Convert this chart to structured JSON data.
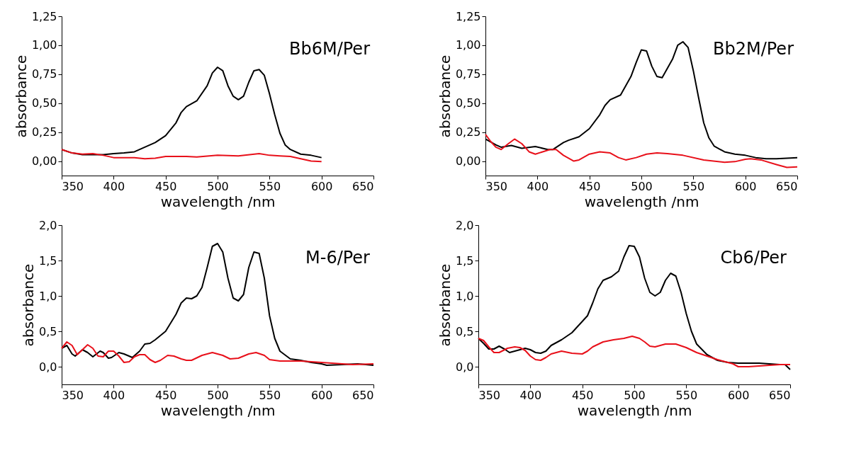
{
  "chart_data": [
    {
      "type": "line",
      "annotations": [
        "Bb6M/Per"
      ],
      "xlabel": "wavelength /nm",
      "ylabel": "absorbance",
      "xlim": [
        350,
        650
      ],
      "xticks": [
        350,
        400,
        450,
        500,
        550,
        600,
        650
      ],
      "ylim": [
        -0.125,
        1.25
      ],
      "yticks": [
        {
          "value": 0,
          "label": "0,00"
        },
        {
          "value": 0.25,
          "label": "0,25"
        },
        {
          "value": 0.5,
          "label": "0,50"
        },
        {
          "value": 0.75,
          "label": "0,75"
        },
        {
          "value": 1.0,
          "label": "1,00"
        },
        {
          "value": 1.25,
          "label": "1,25"
        }
      ],
      "grid": false,
      "legend": false,
      "series": [
        {
          "color": "#000000",
          "x": [
            350,
            360,
            370,
            390,
            400,
            410,
            420,
            430,
            440,
            450,
            460,
            465,
            470,
            480,
            490,
            495,
            500,
            505,
            510,
            515,
            520,
            525,
            530,
            535,
            540,
            545,
            550,
            555,
            560,
            565,
            570,
            580,
            590,
            600
          ],
          "values": [
            0.1,
            0.07,
            0.055,
            0.055,
            0.065,
            0.07,
            0.08,
            0.12,
            0.16,
            0.22,
            0.33,
            0.42,
            0.47,
            0.52,
            0.65,
            0.76,
            0.81,
            0.78,
            0.65,
            0.56,
            0.53,
            0.56,
            0.68,
            0.78,
            0.79,
            0.74,
            0.58,
            0.4,
            0.24,
            0.14,
            0.1,
            0.06,
            0.05,
            0.03
          ]
        },
        {
          "color": "#e8101a",
          "x": [
            350,
            360,
            370,
            380,
            390,
            400,
            420,
            430,
            440,
            450,
            470,
            480,
            500,
            520,
            540,
            550,
            560,
            570,
            580,
            590,
            600
          ],
          "values": [
            0.1,
            0.07,
            0.06,
            0.065,
            0.05,
            0.03,
            0.03,
            0.02,
            0.025,
            0.04,
            0.04,
            0.035,
            0.05,
            0.045,
            0.065,
            0.05,
            0.045,
            0.04,
            0.02,
            0.0,
            -0.005
          ]
        }
      ]
    },
    {
      "type": "line",
      "annotations": [
        "Bb2M/Per"
      ],
      "xlabel": "wavelength /nm",
      "ylabel": "absorbance",
      "xlim": [
        350,
        650
      ],
      "xticks": [
        350,
        400,
        450,
        500,
        550,
        600,
        650
      ],
      "ylim": [
        -0.125,
        1.25
      ],
      "yticks": [
        {
          "value": 0,
          "label": "0,00"
        },
        {
          "value": 0.25,
          "label": "0,25"
        },
        {
          "value": 0.5,
          "label": "0,50"
        },
        {
          "value": 0.75,
          "label": "0,75"
        },
        {
          "value": 1.0,
          "label": "1,00"
        },
        {
          "value": 1.25,
          "label": "1,25"
        }
      ],
      "grid": false,
      "legend": false,
      "series": [
        {
          "color": "#000000",
          "x": [
            350,
            360,
            365,
            375,
            385,
            398,
            410,
            415,
            425,
            430,
            440,
            450,
            460,
            465,
            470,
            480,
            490,
            495,
            500,
            505,
            510,
            515,
            520,
            530,
            535,
            540,
            545,
            550,
            555,
            560,
            565,
            570,
            580,
            590,
            600,
            610,
            620,
            630,
            640,
            650
          ],
          "values": [
            0.19,
            0.14,
            0.12,
            0.135,
            0.11,
            0.125,
            0.1,
            0.1,
            0.16,
            0.18,
            0.21,
            0.28,
            0.4,
            0.48,
            0.53,
            0.57,
            0.73,
            0.85,
            0.96,
            0.95,
            0.82,
            0.73,
            0.72,
            0.88,
            1.0,
            1.03,
            0.98,
            0.78,
            0.55,
            0.33,
            0.2,
            0.13,
            0.08,
            0.06,
            0.05,
            0.03,
            0.02,
            0.02,
            0.025,
            0.03
          ]
        },
        {
          "color": "#e8101a",
          "x": [
            350,
            355,
            360,
            365,
            372,
            378,
            385,
            392,
            398,
            405,
            412,
            418,
            425,
            435,
            440,
            450,
            460,
            470,
            478,
            485,
            495,
            505,
            515,
            525,
            540,
            560,
            580,
            590,
            600,
            605,
            615,
            630,
            640,
            650
          ],
          "values": [
            0.23,
            0.17,
            0.12,
            0.1,
            0.15,
            0.19,
            0.15,
            0.08,
            0.06,
            0.08,
            0.1,
            0.1,
            0.05,
            0.0,
            0.01,
            0.06,
            0.08,
            0.07,
            0.03,
            0.01,
            0.03,
            0.06,
            0.07,
            0.065,
            0.05,
            0.01,
            -0.01,
            -0.005,
            0.015,
            0.02,
            0.01,
            -0.03,
            -0.055,
            -0.05
          ]
        }
      ]
    },
    {
      "type": "line",
      "annotations": [
        "M-6/Per"
      ],
      "xlabel": "wavelength /nm",
      "ylabel": "absorbance",
      "xlim": [
        350,
        650
      ],
      "xticks": [
        350,
        400,
        450,
        500,
        550,
        600,
        650
      ],
      "ylim": [
        -0.25,
        2.0
      ],
      "yticks": [
        {
          "value": 0,
          "label": "0,0"
        },
        {
          "value": 0.5,
          "label": "0,5"
        },
        {
          "value": 1.0,
          "label": "1,0"
        },
        {
          "value": 1.5,
          "label": "1,5"
        },
        {
          "value": 2.0,
          "label": "2,0"
        }
      ],
      "grid": false,
      "legend": false,
      "series": [
        {
          "color": "#000000",
          "x": [
            350,
            355,
            360,
            363,
            370,
            375,
            380,
            387,
            390,
            395,
            398,
            405,
            410,
            418,
            425,
            430,
            435,
            440,
            450,
            460,
            465,
            470,
            475,
            480,
            485,
            490,
            495,
            500,
            505,
            510,
            515,
            520,
            525,
            530,
            535,
            540,
            545,
            550,
            555,
            560,
            570,
            580,
            590,
            600,
            605,
            620,
            635,
            650
          ],
          "values": [
            0.26,
            0.3,
            0.18,
            0.15,
            0.24,
            0.2,
            0.14,
            0.22,
            0.2,
            0.12,
            0.13,
            0.2,
            0.18,
            0.13,
            0.22,
            0.32,
            0.33,
            0.38,
            0.5,
            0.74,
            0.9,
            0.97,
            0.96,
            1.0,
            1.12,
            1.4,
            1.7,
            1.74,
            1.62,
            1.25,
            0.97,
            0.93,
            1.02,
            1.4,
            1.62,
            1.6,
            1.25,
            0.72,
            0.4,
            0.22,
            0.11,
            0.09,
            0.06,
            0.04,
            0.02,
            0.03,
            0.04,
            0.02
          ]
        },
        {
          "color": "#e8101a",
          "x": [
            350,
            355,
            360,
            365,
            370,
            375,
            380,
            385,
            390,
            395,
            400,
            405,
            410,
            415,
            420,
            425,
            430,
            435,
            440,
            445,
            452,
            458,
            465,
            470,
            475,
            485,
            495,
            505,
            512,
            520,
            530,
            537,
            545,
            550,
            560,
            580,
            600,
            620,
            630,
            650
          ],
          "values": [
            0.26,
            0.35,
            0.3,
            0.17,
            0.24,
            0.31,
            0.26,
            0.15,
            0.14,
            0.22,
            0.22,
            0.15,
            0.06,
            0.07,
            0.14,
            0.17,
            0.17,
            0.1,
            0.06,
            0.09,
            0.16,
            0.15,
            0.11,
            0.09,
            0.09,
            0.16,
            0.2,
            0.16,
            0.11,
            0.12,
            0.18,
            0.2,
            0.16,
            0.1,
            0.08,
            0.08,
            0.06,
            0.04,
            0.03,
            0.04
          ]
        }
      ]
    },
    {
      "type": "line",
      "annotations": [
        "Cb6/Per"
      ],
      "xlabel": "wavelength /nm",
      "ylabel": "absorbance",
      "xlim": [
        350,
        650
      ],
      "xticks": [
        350,
        400,
        450,
        500,
        550,
        600,
        650
      ],
      "ylim": [
        -0.25,
        2.0
      ],
      "yticks": [
        {
          "value": 0,
          "label": "0,0"
        },
        {
          "value": 0.5,
          "label": "0,5"
        },
        {
          "value": 1.0,
          "label": "1,0"
        },
        {
          "value": 1.5,
          "label": "1,5"
        },
        {
          "value": 2.0,
          "label": "2,0"
        }
      ],
      "grid": false,
      "legend": false,
      "series": [
        {
          "color": "#000000",
          "x": [
            350,
            355,
            360,
            365,
            370,
            375,
            380,
            390,
            395,
            400,
            405,
            410,
            415,
            420,
            430,
            440,
            450,
            455,
            460,
            465,
            470,
            478,
            485,
            490,
            495,
            500,
            505,
            510,
            515,
            520,
            525,
            530,
            535,
            540,
            545,
            550,
            555,
            560,
            570,
            580,
            590,
            600,
            610,
            620,
            630,
            640,
            645,
            650
          ],
          "values": [
            0.4,
            0.33,
            0.25,
            0.25,
            0.29,
            0.25,
            0.2,
            0.24,
            0.26,
            0.24,
            0.2,
            0.19,
            0.22,
            0.3,
            0.38,
            0.48,
            0.64,
            0.72,
            0.9,
            1.1,
            1.22,
            1.27,
            1.35,
            1.55,
            1.71,
            1.7,
            1.55,
            1.25,
            1.05,
            1.0,
            1.05,
            1.22,
            1.32,
            1.28,
            1.05,
            0.75,
            0.5,
            0.32,
            0.17,
            0.09,
            0.06,
            0.05,
            0.05,
            0.05,
            0.04,
            0.03,
            0.03,
            -0.04
          ]
        },
        {
          "color": "#e8101a",
          "x": [
            350,
            355,
            360,
            365,
            370,
            378,
            385,
            390,
            395,
            400,
            405,
            410,
            415,
            420,
            430,
            440,
            450,
            455,
            460,
            470,
            480,
            490,
            498,
            505,
            510,
            515,
            520,
            530,
            540,
            550,
            560,
            570,
            580,
            590,
            595,
            600,
            610,
            620,
            630,
            640,
            650
          ],
          "values": [
            0.4,
            0.37,
            0.28,
            0.2,
            0.2,
            0.26,
            0.28,
            0.27,
            0.23,
            0.15,
            0.1,
            0.09,
            0.13,
            0.18,
            0.22,
            0.19,
            0.18,
            0.22,
            0.28,
            0.35,
            0.38,
            0.4,
            0.43,
            0.4,
            0.35,
            0.29,
            0.28,
            0.32,
            0.32,
            0.27,
            0.2,
            0.15,
            0.1,
            0.06,
            0.04,
            0.0,
            0.0,
            0.01,
            0.02,
            0.03,
            0.03
          ]
        }
      ]
    }
  ]
}
